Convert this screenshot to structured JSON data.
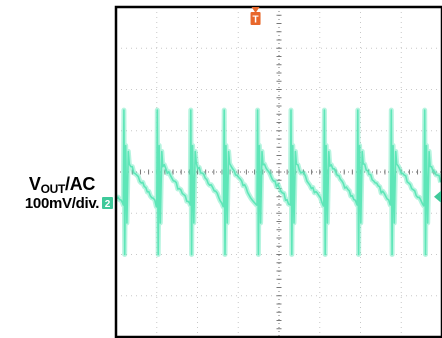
{
  "chart_data": {
    "type": "line",
    "title": "",
    "ylabel": {
      "main": "V",
      "subscript": "OUT",
      "suffix": "/AC",
      "scale": "100mV/div."
    },
    "channel_marker": "2",
    "trigger_marker": "T",
    "grid": true,
    "divisions": {
      "x": 8,
      "y": 8
    },
    "ylim": [
      -400,
      400
    ],
    "y_units": "mV",
    "waveform": {
      "name": "",
      "color": "#5ee6b8",
      "period_div": 0.82,
      "first_spike_div": 0.18,
      "ripple_high_mV": 40,
      "ripple_low_mV": -80,
      "spike_top_mV": 150,
      "spike_bottom_mV": -200
    },
    "colors": {
      "frame": "#000000",
      "grid": "#c8c8c8",
      "axis": "#777777",
      "trace": "#5ee6b8",
      "trigger": "#e8672b",
      "channel": "#3ec99a"
    }
  }
}
